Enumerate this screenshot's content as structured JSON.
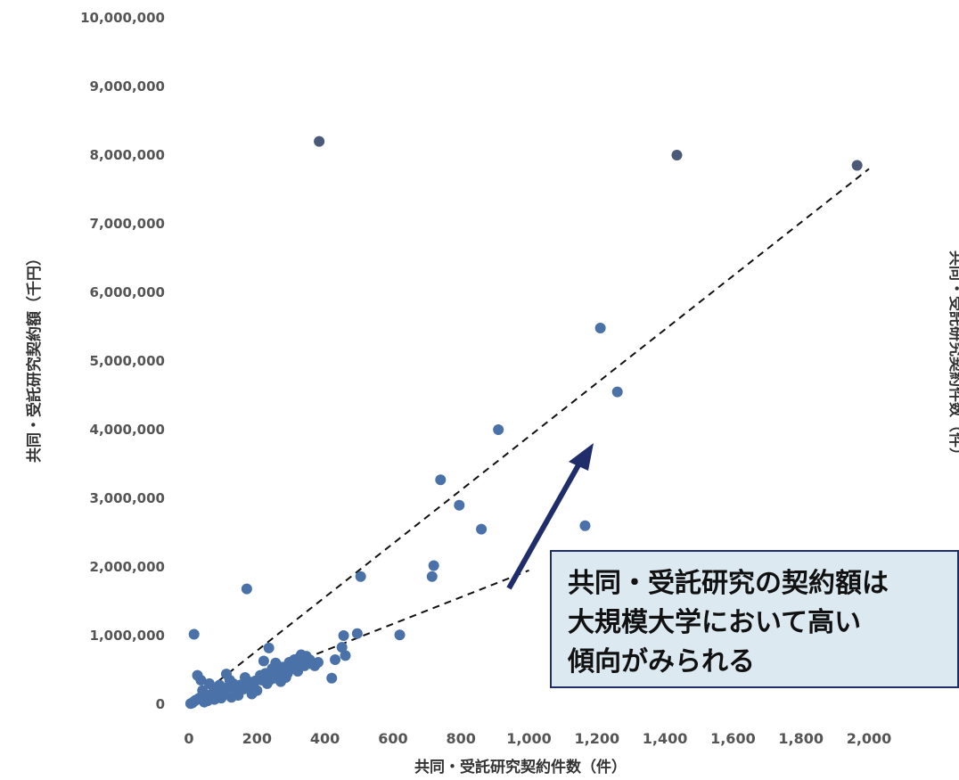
{
  "chart_data": {
    "type": "scatter",
    "xlabel": "共同・受託研究契約件数（件）",
    "ylabel": "共同・受託研究契約額（千円）",
    "right_axis_label": "共同・受託研究契約件数（件）",
    "xlim": [
      0,
      2000
    ],
    "ylim": [
      0,
      10000000
    ],
    "x_ticks": [
      "0",
      "200",
      "400",
      "600",
      "800",
      "1,000",
      "1,200",
      "1,400",
      "1,600",
      "1,800",
      "2,000"
    ],
    "y_ticks": [
      "0",
      "1,000,000",
      "2,000,000",
      "3,000,000",
      "4,000,000",
      "5,000,000",
      "6,000,000",
      "7,000,000",
      "8,000,000",
      "9,000,000",
      "10,000,000"
    ],
    "grid": false,
    "points": [
      {
        "x": 383,
        "y": 8200000
      },
      {
        "x": 1435,
        "y": 8000000
      },
      {
        "x": 1965,
        "y": 7850000
      },
      {
        "x": 1210,
        "y": 5480000
      },
      {
        "x": 1260,
        "y": 4550000
      },
      {
        "x": 910,
        "y": 4000000
      },
      {
        "x": 740,
        "y": 3270000
      },
      {
        "x": 795,
        "y": 2900000
      },
      {
        "x": 860,
        "y": 2550000
      },
      {
        "x": 1165,
        "y": 2600000
      },
      {
        "x": 720,
        "y": 2020000
      },
      {
        "x": 715,
        "y": 1860000
      },
      {
        "x": 505,
        "y": 1860000
      },
      {
        "x": 170,
        "y": 1680000
      },
      {
        "x": 15,
        "y": 1020000
      },
      {
        "x": 620,
        "y": 1010000
      },
      {
        "x": 495,
        "y": 1030000
      },
      {
        "x": 455,
        "y": 1000000
      },
      {
        "x": 450,
        "y": 830000
      },
      {
        "x": 430,
        "y": 650000
      },
      {
        "x": 460,
        "y": 710000
      },
      {
        "x": 420,
        "y": 380000
      },
      {
        "x": 350,
        "y": 620000
      },
      {
        "x": 330,
        "y": 720000
      },
      {
        "x": 310,
        "y": 650000
      },
      {
        "x": 300,
        "y": 560000
      },
      {
        "x": 280,
        "y": 500000
      },
      {
        "x": 255,
        "y": 600000
      },
      {
        "x": 235,
        "y": 820000
      },
      {
        "x": 220,
        "y": 630000
      },
      {
        "x": 210,
        "y": 420000
      },
      {
        "x": 195,
        "y": 340000
      },
      {
        "x": 180,
        "y": 250000
      },
      {
        "x": 165,
        "y": 390000
      },
      {
        "x": 150,
        "y": 280000
      },
      {
        "x": 135,
        "y": 220000
      },
      {
        "x": 120,
        "y": 350000
      },
      {
        "x": 110,
        "y": 440000
      },
      {
        "x": 100,
        "y": 180000
      },
      {
        "x": 90,
        "y": 280000
      },
      {
        "x": 80,
        "y": 230000
      },
      {
        "x": 70,
        "y": 160000
      },
      {
        "x": 60,
        "y": 300000
      },
      {
        "x": 50,
        "y": 140000
      },
      {
        "x": 40,
        "y": 200000
      },
      {
        "x": 35,
        "y": 350000
      },
      {
        "x": 30,
        "y": 90000
      },
      {
        "x": 25,
        "y": 420000
      },
      {
        "x": 20,
        "y": 60000
      },
      {
        "x": 15,
        "y": 40000
      },
      {
        "x": 10,
        "y": 20000
      },
      {
        "x": 5,
        "y": 10000
      },
      {
        "x": 260,
        "y": 420000
      },
      {
        "x": 270,
        "y": 330000
      },
      {
        "x": 240,
        "y": 360000
      },
      {
        "x": 290,
        "y": 450000
      },
      {
        "x": 320,
        "y": 480000
      },
      {
        "x": 340,
        "y": 560000
      },
      {
        "x": 360,
        "y": 590000
      },
      {
        "x": 230,
        "y": 300000
      },
      {
        "x": 200,
        "y": 200000
      },
      {
        "x": 185,
        "y": 150000
      },
      {
        "x": 145,
        "y": 130000
      },
      {
        "x": 125,
        "y": 100000
      },
      {
        "x": 95,
        "y": 90000
      },
      {
        "x": 75,
        "y": 70000
      },
      {
        "x": 55,
        "y": 50000
      },
      {
        "x": 45,
        "y": 30000
      },
      {
        "x": 65,
        "y": 110000
      },
      {
        "x": 85,
        "y": 120000
      },
      {
        "x": 105,
        "y": 150000
      },
      {
        "x": 115,
        "y": 250000
      },
      {
        "x": 130,
        "y": 300000
      },
      {
        "x": 160,
        "y": 220000
      },
      {
        "x": 175,
        "y": 330000
      },
      {
        "x": 190,
        "y": 280000
      },
      {
        "x": 215,
        "y": 350000
      },
      {
        "x": 225,
        "y": 450000
      },
      {
        "x": 245,
        "y": 520000
      },
      {
        "x": 250,
        "y": 380000
      },
      {
        "x": 265,
        "y": 470000
      },
      {
        "x": 275,
        "y": 540000
      },
      {
        "x": 285,
        "y": 390000
      },
      {
        "x": 295,
        "y": 610000
      },
      {
        "x": 305,
        "y": 520000
      },
      {
        "x": 315,
        "y": 600000
      },
      {
        "x": 325,
        "y": 680000
      },
      {
        "x": 335,
        "y": 620000
      },
      {
        "x": 345,
        "y": 700000
      },
      {
        "x": 355,
        "y": 650000
      },
      {
        "x": 370,
        "y": 560000
      },
      {
        "x": 380,
        "y": 610000
      }
    ],
    "marker_color": "#4a72a8",
    "highlight_point_color": "#4a5a78",
    "trend_lines": [
      {
        "from": {
          "x": 0,
          "y": 0
        },
        "to": {
          "x": 2000,
          "y": 7800000
        }
      },
      {
        "from": {
          "x": 0,
          "y": 0
        },
        "to": {
          "x": 1000,
          "y": 1950000
        }
      }
    ],
    "annotation": {
      "lines": [
        "共同・受託研究の契約額は",
        "大規模大学において高い",
        "傾向がみられる"
      ],
      "background": "#dce9f1",
      "border": "#1f2d6b",
      "arrow_color": "#1f2d6b"
    }
  }
}
